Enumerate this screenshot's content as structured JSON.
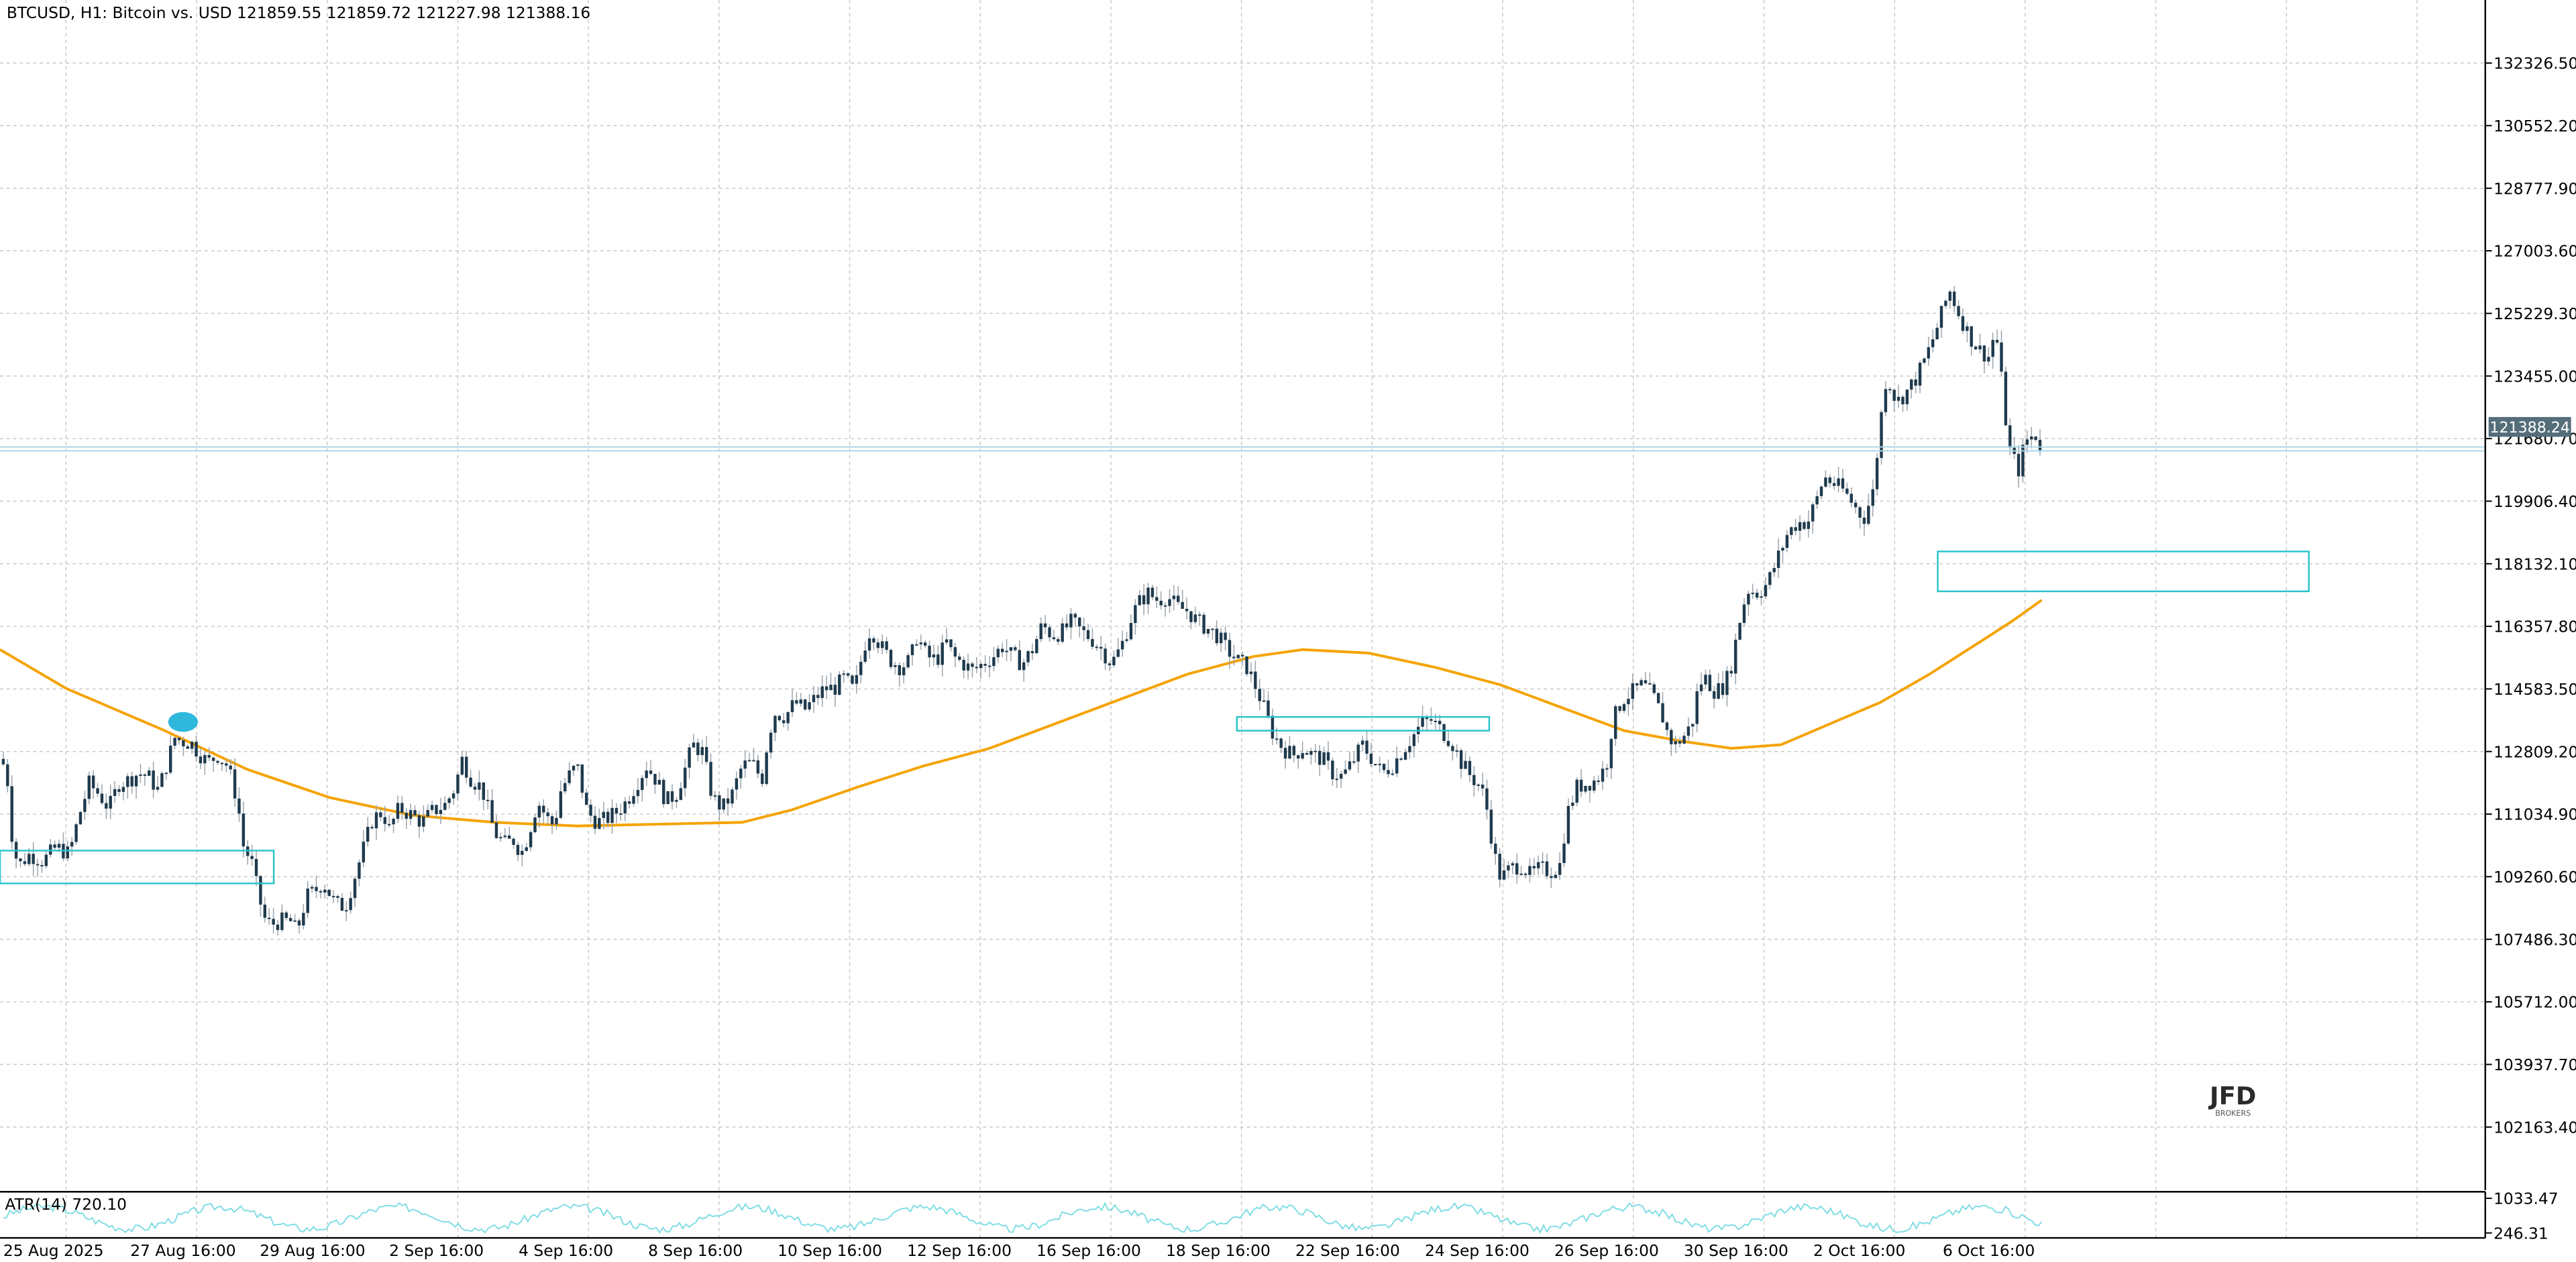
{
  "header": {
    "symbol_line": "BTCUSD, H1:  Bitcoin vs. USD  121859.55 121859.72 121227.98 121388.16"
  },
  "colors": {
    "background": "#ffffff",
    "grid": "#c8c8c8",
    "candle": "#1f3a4d",
    "candle_wick": "#9aa3ab",
    "moving_average": "#f5a300",
    "zone": "#29c3cc",
    "price_marker_bg": "#546e7a",
    "atr_line": "#7fdde3",
    "highlight": "#1ab0d8"
  },
  "logo": {
    "main": "JFD",
    "sub": "BROKERS"
  },
  "price_marker": {
    "value": "121388.24"
  },
  "atr_panel": {
    "label": "ATR(14) 720.10",
    "ticks": [
      "1033.47",
      "246.31"
    ],
    "range": [
      246.31,
      1033.47
    ]
  },
  "chart_data": {
    "type": "candlestick",
    "title": "BTCUSD, H1:  Bitcoin vs. USD",
    "ylim": [
      100376,
      134114
    ],
    "y_ticks": [
      "132326.50",
      "130552.20",
      "128777.90",
      "127003.60",
      "125229.30",
      "123455.00",
      "121680.70",
      "119906.40",
      "118132.10",
      "116357.80",
      "114583.50",
      "112809.20",
      "111034.90",
      "109260.60",
      "107486.30",
      "105712.00",
      "103937.70",
      "102163.40"
    ],
    "x_ticks": [
      "25 Aug 2025",
      "27 Aug 16:00",
      "29 Aug 16:00",
      "2 Sep 16:00",
      "4 Sep 16:00",
      "8 Sep 16:00",
      "10 Sep 16:00",
      "12 Sep 16:00",
      "16 Sep 16:00",
      "18 Sep 16:00",
      "22 Sep 16:00",
      "24 Sep 16:00",
      "26 Sep 16:00",
      "30 Sep 16:00",
      "2 Oct 16:00",
      "6 Oct 16:00"
    ],
    "grid": true,
    "last_price": 121388.24,
    "price_path": [
      [
        0,
        112600
      ],
      [
        4,
        112300
      ],
      [
        8,
        110000
      ],
      [
        12,
        109600
      ],
      [
        18,
        109900
      ],
      [
        26,
        109700
      ],
      [
        34,
        110100
      ],
      [
        42,
        109900
      ],
      [
        48,
        111000
      ],
      [
        54,
        111900
      ],
      [
        60,
        111600
      ],
      [
        66,
        111200
      ],
      [
        72,
        111900
      ],
      [
        78,
        112000
      ],
      [
        84,
        112200
      ],
      [
        90,
        112100
      ],
      [
        96,
        111700
      ],
      [
        102,
        112600
      ],
      [
        106,
        113200
      ],
      [
        110,
        113100
      ],
      [
        116,
        113050
      ],
      [
        120,
        112800
      ],
      [
        126,
        112500
      ],
      [
        132,
        112700
      ],
      [
        138,
        112400
      ],
      [
        144,
        111400
      ],
      [
        148,
        110000
      ],
      [
        152,
        109800
      ],
      [
        156,
        108900
      ],
      [
        160,
        108100
      ],
      [
        164,
        107900
      ],
      [
        170,
        108000
      ],
      [
        176,
        108000
      ],
      [
        180,
        107700
      ],
      [
        186,
        108700
      ],
      [
        192,
        108900
      ],
      [
        196,
        109100
      ],
      [
        202,
        108600
      ],
      [
        206,
        108400
      ],
      [
        210,
        108500
      ],
      [
        216,
        109400
      ],
      [
        222,
        110300
      ],
      [
        226,
        110900
      ],
      [
        232,
        111100
      ],
      [
        236,
        110600
      ],
      [
        242,
        111200
      ],
      [
        250,
        111000
      ],
      [
        256,
        110800
      ],
      [
        262,
        111100
      ],
      [
        270,
        111300
      ],
      [
        276,
        111800
      ],
      [
        280,
        112600
      ],
      [
        286,
        112000
      ],
      [
        292,
        111800
      ],
      [
        300,
        110500
      ],
      [
        306,
        110200
      ],
      [
        312,
        110300
      ],
      [
        316,
        109900
      ],
      [
        320,
        110400
      ],
      [
        326,
        111400
      ],
      [
        332,
        110900
      ],
      [
        336,
        110700
      ],
      [
        340,
        111700
      ],
      [
        346,
        112200
      ],
      [
        350,
        112400
      ],
      [
        356,
        111100
      ],
      [
        362,
        110800
      ],
      [
        368,
        110900
      ],
      [
        374,
        111100
      ],
      [
        380,
        111400
      ],
      [
        386,
        111900
      ],
      [
        392,
        112400
      ],
      [
        398,
        112000
      ],
      [
        404,
        111400
      ],
      [
        410,
        111600
      ],
      [
        416,
        112400
      ],
      [
        420,
        113000
      ],
      [
        426,
        112800
      ],
      [
        432,
        111500
      ],
      [
        438,
        111200
      ],
      [
        444,
        111600
      ],
      [
        450,
        112400
      ],
      [
        456,
        112500
      ],
      [
        462,
        112000
      ],
      [
        466,
        113300
      ],
      [
        470,
        113900
      ],
      [
        476,
        113800
      ],
      [
        482,
        114200
      ],
      [
        488,
        114000
      ],
      [
        494,
        114300
      ],
      [
        500,
        114600
      ],
      [
        506,
        114600
      ],
      [
        512,
        114900
      ],
      [
        518,
        114500
      ],
      [
        524,
        115800
      ],
      [
        528,
        116300
      ],
      [
        534,
        115800
      ],
      [
        540,
        115400
      ],
      [
        546,
        115200
      ],
      [
        552,
        115400
      ],
      [
        556,
        116100
      ],
      [
        562,
        115500
      ],
      [
        568,
        115400
      ],
      [
        574,
        115900
      ],
      [
        578,
        115500
      ],
      [
        584,
        115300
      ],
      [
        590,
        115100
      ],
      [
        596,
        115300
      ],
      [
        602,
        115500
      ],
      [
        608,
        115800
      ],
      [
        614,
        115500
      ],
      [
        620,
        115300
      ],
      [
        626,
        115700
      ],
      [
        632,
        116400
      ],
      [
        638,
        116100
      ],
      [
        644,
        116200
      ],
      [
        650,
        116500
      ],
      [
        656,
        116200
      ],
      [
        662,
        116000
      ],
      [
        668,
        115700
      ],
      [
        674,
        115300
      ],
      [
        680,
        115800
      ],
      [
        686,
        116600
      ],
      [
        690,
        117000
      ],
      [
        696,
        117300
      ],
      [
        702,
        117100
      ],
      [
        708,
        117200
      ],
      [
        714,
        116900
      ],
      [
        720,
        116800
      ],
      [
        726,
        116500
      ],
      [
        732,
        116300
      ],
      [
        738,
        116100
      ],
      [
        744,
        115700
      ],
      [
        750,
        115400
      ],
      [
        756,
        115200
      ],
      [
        760,
        114800
      ],
      [
        766,
        114100
      ],
      [
        772,
        113300
      ],
      [
        778,
        112900
      ],
      [
        784,
        112700
      ],
      [
        790,
        112900
      ],
      [
        796,
        112700
      ],
      [
        802,
        112600
      ],
      [
        808,
        112200
      ],
      [
        814,
        112100
      ],
      [
        820,
        112500
      ],
      [
        826,
        113000
      ],
      [
        832,
        112600
      ],
      [
        838,
        112200
      ],
      [
        844,
        112400
      ],
      [
        850,
        112800
      ],
      [
        856,
        113200
      ],
      [
        862,
        113600
      ],
      [
        868,
        113700
      ],
      [
        874,
        113400
      ],
      [
        880,
        113100
      ],
      [
        886,
        112500
      ],
      [
        892,
        112100
      ],
      [
        898,
        111800
      ],
      [
        902,
        111100
      ],
      [
        906,
        109900
      ],
      [
        910,
        109200
      ],
      [
        916,
        109500
      ],
      [
        922,
        109600
      ],
      [
        928,
        109300
      ],
      [
        934,
        109500
      ],
      [
        940,
        109400
      ],
      [
        946,
        109600
      ],
      [
        950,
        111000
      ],
      [
        956,
        111800
      ],
      [
        962,
        111900
      ],
      [
        968,
        112000
      ],
      [
        974,
        112400
      ],
      [
        978,
        113700
      ],
      [
        984,
        114300
      ],
      [
        990,
        114500
      ],
      [
        996,
        114700
      ],
      [
        1002,
        114400
      ],
      [
        1008,
        113800
      ],
      [
        1012,
        113200
      ],
      [
        1016,
        113000
      ],
      [
        1022,
        113300
      ],
      [
        1026,
        113600
      ],
      [
        1030,
        114700
      ],
      [
        1034,
        114900
      ],
      [
        1040,
        114500
      ],
      [
        1046,
        114700
      ],
      [
        1050,
        115300
      ],
      [
        1056,
        116800
      ],
      [
        1060,
        117400
      ],
      [
        1066,
        117300
      ],
      [
        1072,
        117600
      ],
      [
        1078,
        118300
      ],
      [
        1084,
        119000
      ],
      [
        1090,
        119300
      ],
      [
        1096,
        119300
      ],
      [
        1102,
        120000
      ],
      [
        1106,
        120600
      ],
      [
        1112,
        120400
      ],
      [
        1118,
        120200
      ],
      [
        1124,
        119800
      ],
      [
        1130,
        119400
      ],
      [
        1136,
        120200
      ],
      [
        1140,
        122100
      ],
      [
        1144,
        123500
      ],
      [
        1150,
        122700
      ],
      [
        1156,
        123000
      ],
      [
        1162,
        123400
      ],
      [
        1168,
        124000
      ],
      [
        1172,
        124500
      ],
      [
        1178,
        125300
      ],
      [
        1182,
        125900
      ],
      [
        1188,
        125200
      ],
      [
        1194,
        124600
      ],
      [
        1200,
        124200
      ],
      [
        1206,
        124000
      ],
      [
        1210,
        124800
      ],
      [
        1214,
        123200
      ],
      [
        1218,
        121400
      ],
      [
        1224,
        120800
      ],
      [
        1228,
        121600
      ],
      [
        1234,
        121800
      ],
      [
        1238,
        121388
      ]
    ],
    "series": [
      {
        "type": "moving_average",
        "points": [
          [
            0,
            115700
          ],
          [
            40,
            114600
          ],
          [
            100,
            113400
          ],
          [
            150,
            112300
          ],
          [
            200,
            111500
          ],
          [
            250,
            111000
          ],
          [
            300,
            110800
          ],
          [
            350,
            110700
          ],
          [
            400,
            110750
          ],
          [
            450,
            110800
          ],
          [
            480,
            111150
          ],
          [
            520,
            111800
          ],
          [
            560,
            112400
          ],
          [
            600,
            112900
          ],
          [
            640,
            113600
          ],
          [
            680,
            114300
          ],
          [
            720,
            115000
          ],
          [
            760,
            115500
          ],
          [
            790,
            115700
          ],
          [
            830,
            115600
          ],
          [
            870,
            115200
          ],
          [
            910,
            114700
          ],
          [
            950,
            114000
          ],
          [
            985,
            113400
          ],
          [
            1020,
            113100
          ],
          [
            1050,
            112900
          ],
          [
            1080,
            113000
          ],
          [
            1110,
            113600
          ],
          [
            1140,
            114200
          ],
          [
            1170,
            115000
          ],
          [
            1200,
            115900
          ],
          [
            1220,
            116500
          ],
          [
            1238,
            117100
          ]
        ]
      }
    ],
    "zones": [
      {
        "x": [
          0,
          166
        ],
        "y": [
          110000,
          109070
        ]
      },
      {
        "x": [
          750,
          903
        ],
        "y": [
          113790,
          113400
        ]
      },
      {
        "x": [
          1175,
          1400
        ],
        "y": [
          118480,
          117350
        ]
      }
    ]
  }
}
